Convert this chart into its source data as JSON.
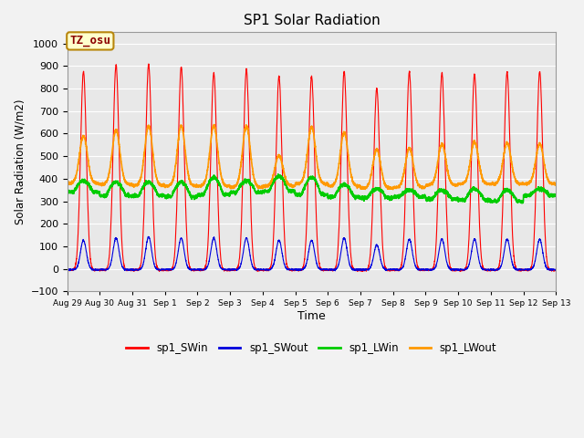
{
  "title": "SP1 Solar Radiation",
  "xlabel": "Time",
  "ylabel": "Solar Radiation (W/m2)",
  "ylim": [
    -100,
    1050
  ],
  "annotation": "TZ_osu",
  "bg_color": "#e8e8e8",
  "grid_color": "white",
  "legend": [
    "sp1_SWin",
    "sp1_SWout",
    "sp1_LWin",
    "sp1_LWout"
  ],
  "colors": {
    "sp1_SWin": "#ff0000",
    "sp1_SWout": "#0000dd",
    "sp1_LWin": "#00cc00",
    "sp1_LWout": "#ff9900"
  },
  "xtick_labels": [
    "Aug 29",
    "Aug 30",
    "Aug 31",
    "Sep 1",
    "Sep 2",
    "Sep 3",
    "Sep 4",
    "Sep 5",
    "Sep 6",
    "Sep 7",
    "Sep 8",
    "Sep 9",
    "Sep 10",
    "Sep 11",
    "Sep 12",
    "Sep 13"
  ],
  "num_days": 15,
  "SWin_peaks": [
    880,
    910,
    915,
    900,
    875,
    890,
    860,
    860,
    880,
    805,
    880,
    875,
    870,
    880,
    880
  ],
  "SWout_peaks": [
    130,
    140,
    145,
    140,
    140,
    140,
    130,
    130,
    140,
    110,
    135,
    135,
    135,
    135,
    135
  ],
  "LWin_day": [
    390,
    385,
    385,
    385,
    405,
    390,
    410,
    405,
    375,
    355,
    350,
    350,
    355,
    350,
    355
  ],
  "LWin_night": [
    340,
    325,
    325,
    320,
    330,
    340,
    345,
    330,
    320,
    315,
    320,
    310,
    305,
    300,
    325
  ],
  "LWout_peak": [
    590,
    615,
    635,
    635,
    635,
    635,
    505,
    630,
    605,
    530,
    535,
    555,
    565,
    560,
    555
  ],
  "LWout_night": [
    380,
    375,
    370,
    368,
    368,
    363,
    368,
    378,
    368,
    358,
    362,
    372,
    377,
    377,
    377
  ]
}
